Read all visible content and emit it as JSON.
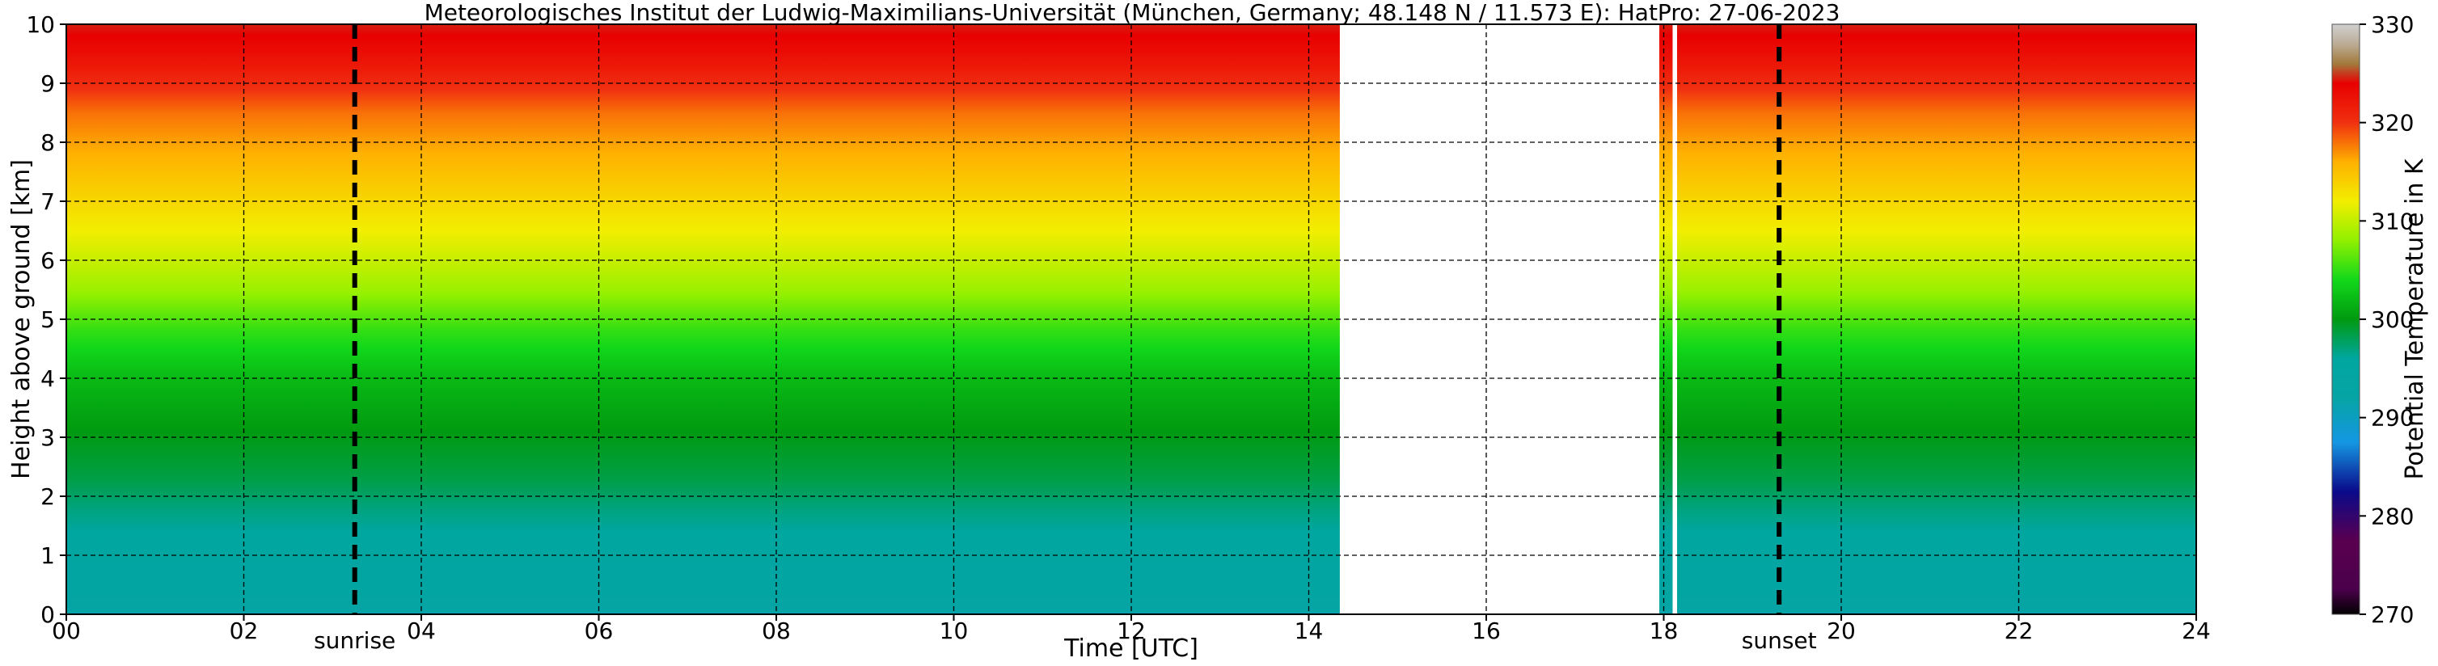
{
  "chart_data": {
    "type": "heatmap",
    "title": "Meteorologisches Institut der Ludwig-Maximilians-Universität (München, Germany; 48.148 N / 11.573 E):    HatPro: 27-06-2023",
    "xlabel": "Time [UTC]",
    "ylabel": "Height above ground [km]",
    "xlim": [
      0,
      24
    ],
    "ylim": [
      0,
      10
    ],
    "x_ticks": [
      "00",
      "02",
      "04",
      "06",
      "08",
      "10",
      "12",
      "14",
      "16",
      "18",
      "20",
      "22",
      "24"
    ],
    "y_ticks": [
      "0",
      "1",
      "2",
      "3",
      "4",
      "5",
      "6",
      "7",
      "8",
      "9",
      "10"
    ],
    "grid": true,
    "colorbar": {
      "label": "Potential Temperature in K",
      "range": [
        270,
        330
      ],
      "ticks": [
        "270",
        "280",
        "290",
        "300",
        "310",
        "320",
        "330"
      ],
      "colors": [
        {
          "k": 270,
          "color": "#000000"
        },
        {
          "k": 272.5,
          "color": "#4a004a"
        },
        {
          "k": 277.5,
          "color": "#5a0050"
        },
        {
          "k": 282.5,
          "color": "#0a0a8a"
        },
        {
          "k": 287.5,
          "color": "#1497e3"
        },
        {
          "k": 292,
          "color": "#06a4a4"
        },
        {
          "k": 296,
          "color": "#00a6a0"
        },
        {
          "k": 300,
          "color": "#009a10"
        },
        {
          "k": 304,
          "color": "#12d81a"
        },
        {
          "k": 308,
          "color": "#90f000"
        },
        {
          "k": 312,
          "color": "#f2ee00"
        },
        {
          "k": 316,
          "color": "#ffb000"
        },
        {
          "k": 320,
          "color": "#f03010"
        },
        {
          "k": 324,
          "color": "#e80000"
        },
        {
          "k": 326,
          "color": "#a27a3c"
        },
        {
          "k": 328,
          "color": "#bcac96"
        },
        {
          "k": 330,
          "color": "#d0d0d0"
        }
      ]
    },
    "data_segments": [
      [
        0,
        14.35
      ],
      [
        17.95,
        18.1
      ],
      [
        18.15,
        24
      ]
    ],
    "profile_km_to_K": [
      [
        0.0,
        291.5
      ],
      [
        0.3,
        294.0
      ],
      [
        1.0,
        295.0
      ],
      [
        1.8,
        297.0
      ],
      [
        2.3,
        298.5
      ],
      [
        3.0,
        299.8
      ],
      [
        4.0,
        302.0
      ],
      [
        4.8,
        305.0
      ],
      [
        5.5,
        308.5
      ],
      [
        6.5,
        312.0
      ],
      [
        7.5,
        315.0
      ],
      [
        8.5,
        318.0
      ],
      [
        9.3,
        322.0
      ],
      [
        9.8,
        324.0
      ],
      [
        10.0,
        324.5
      ]
    ],
    "markers": [
      {
        "label": "sunrise",
        "x": 3.25
      },
      {
        "label": "sunset",
        "x": 19.3
      }
    ]
  }
}
